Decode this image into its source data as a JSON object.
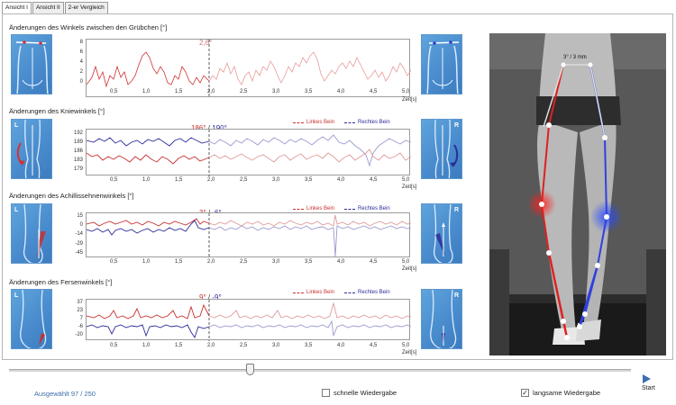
{
  "tabs": [
    "Ansicht I",
    "Ansicht II",
    "2-er Vergleich"
  ],
  "sections": [
    {
      "title": "Änderungen des Winkels zwischen den Grübchen [°]",
      "ylabels": [
        "8",
        "6",
        "4",
        "2",
        "0"
      ],
      "readout": "2,6°",
      "legend": []
    },
    {
      "title": "Änderungen des Kniewinkels [°]",
      "ylabels": [
        "192",
        "189",
        "186",
        "183",
        "179"
      ],
      "readout_left": "186°",
      "readout_sep": "/",
      "readout_right": "190°",
      "legend": [
        "Linkes Bein",
        "Rechtes Bein"
      ],
      "thumb_l": "L",
      "thumb_r": "R"
    },
    {
      "title": "Änderungen des Achillissehnenwinkels [°]",
      "ylabels": [
        "15",
        "0",
        "-14",
        "-29",
        "-45"
      ],
      "readout_left": "3°",
      "readout_sep": "/",
      "readout_right": "-6°",
      "legend": [
        "Linkes Bein",
        "Rechtes Bein"
      ],
      "thumb_l": "L",
      "thumb_r": "R"
    },
    {
      "title": "Änderungen des Fersenwinkels [°]",
      "ylabels": [
        "37",
        "23",
        "7",
        "-6",
        "-20"
      ],
      "readout_left": "9°",
      "readout_sep": "/",
      "readout_right": "-9°",
      "legend": [
        "Linkes Bein",
        "Rechtes Bein"
      ],
      "thumb_l": "L",
      "thumb_r": "R"
    }
  ],
  "xticks": [
    "0,5",
    "1,0",
    "1,5",
    "2,0",
    "2,5",
    "3,0",
    "3,5",
    "4,0",
    "4,5",
    "5,0"
  ],
  "xunit": "Zeit[s]",
  "photo_label": "3° / 3 mm",
  "footer": {
    "selected": "Ausgewählt 97 / 250",
    "fast_label": "schnelle Wiedergabe",
    "fast_checked": false,
    "slow_label": "langsame Wiedergabe",
    "slow_checked": true,
    "start_label": "Start"
  },
  "playback_position": 0.389,
  "colors": {
    "left_leg": "#c83030",
    "right_leg": "#2c2c9a",
    "thumb_bg": "#4a8ccd",
    "selected_text": "#3b6ea8"
  }
}
